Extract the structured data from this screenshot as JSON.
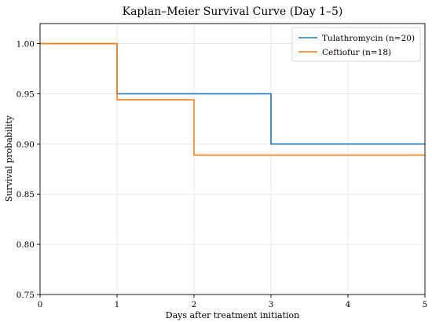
{
  "chart_data": {
    "type": "line",
    "step": "post",
    "title": "Kaplan–Meier Survival Curve (Day 1–5)",
    "xlabel": "Days after treatment initiation",
    "ylabel": "Survival probability",
    "xlim": [
      0,
      5
    ],
    "ylim": [
      0.75,
      1.02
    ],
    "xticks": [
      0,
      1,
      2,
      3,
      4,
      5
    ],
    "yticks": [
      0.75,
      0.8,
      0.85,
      0.9,
      0.95,
      1.0
    ],
    "xtick_labels": [
      "0",
      "1",
      "2",
      "3",
      "4",
      "5"
    ],
    "ytick_labels": [
      "0.75",
      "0.80",
      "0.85",
      "0.90",
      "0.95",
      "1.00"
    ],
    "grid": true,
    "legend_position": "top-right",
    "series": [
      {
        "name": "Tulathromycin (n=20)",
        "color": "#1f77b4",
        "x": [
          0,
          1,
          2,
          3,
          4,
          5
        ],
        "y": [
          1.0,
          0.95,
          0.95,
          0.9,
          0.9,
          0.9
        ]
      },
      {
        "name": "Ceftiofur (n=18)",
        "color": "#ff7f0e",
        "x": [
          0,
          1,
          2,
          3,
          4,
          5
        ],
        "y": [
          1.0,
          0.944,
          0.889,
          0.889,
          0.889,
          0.889
        ]
      }
    ]
  }
}
